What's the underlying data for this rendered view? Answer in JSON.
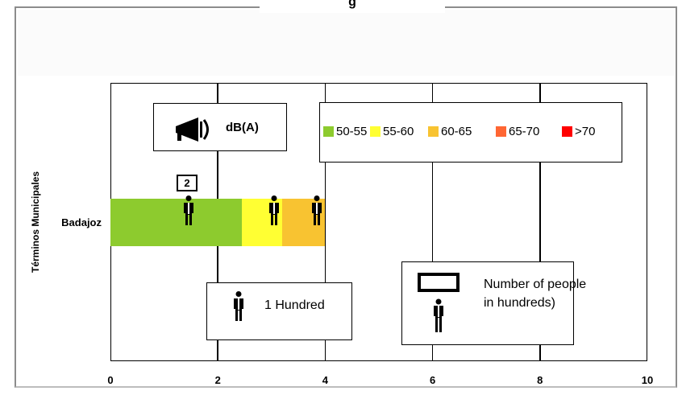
{
  "chart_data": {
    "type": "bar",
    "orientation": "horizontal",
    "stacked": true,
    "title": "g",
    "ylabel": "Términos Municipales",
    "xlabel": "",
    "xlim": [
      0,
      10
    ],
    "xticks": [
      "0",
      "2",
      "4",
      "6",
      "8",
      "10"
    ],
    "grid": true,
    "categories": [
      "Badajoz"
    ],
    "series": [
      {
        "name": "50-55",
        "color": "#8dcb2e",
        "values": [
          2.45
        ]
      },
      {
        "name": "55-60",
        "color": "#ffff33",
        "values": [
          0.75
        ]
      },
      {
        "name": "60-65",
        "color": "#f8c331",
        "values": [
          0.8
        ]
      },
      {
        "name": "65-70",
        "color": "#ff6633",
        "values": [
          0
        ]
      },
      {
        "name": ">70",
        "color": "#ff0000",
        "values": [
          0
        ]
      }
    ],
    "people_markers": [
      1.45,
      3.05,
      3.85
    ],
    "count_label": "2",
    "legend_title": "dB(A)",
    "legend_placement": "top-right",
    "notes": [
      {
        "icon": "person-icon",
        "text": "1 Hundred"
      },
      {
        "icon": "person-with-box-icon",
        "text": "Number of people in hundreds)"
      }
    ]
  }
}
